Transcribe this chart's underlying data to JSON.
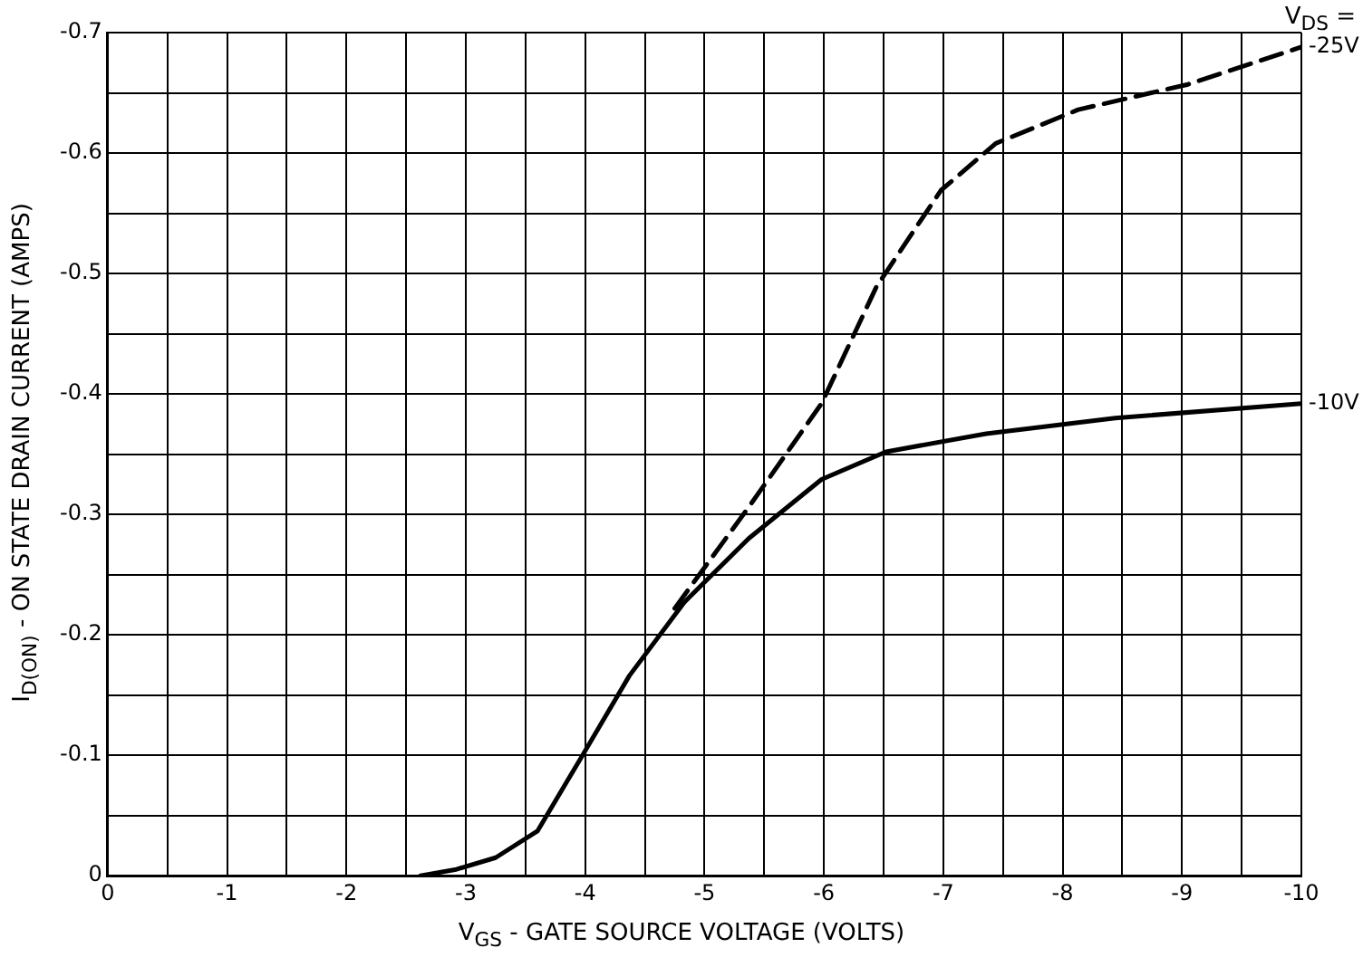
{
  "chart_data": {
    "type": "line",
    "xlabel": "V$_{GS}$ - GATE SOURCE VOLTAGE (VOLTS)",
    "ylabel": "I$_{D(ON)}$ - ON STATE DRAIN CURRENT (AMPS)",
    "legend_title": "V$_{DS}$ =",
    "xlim": [
      0,
      -10
    ],
    "ylim": [
      0,
      -0.7
    ],
    "xticks": [
      0,
      {
        "value": -0.5,
        "label": null
      },
      -1,
      {
        "value": -1.5,
        "label": null
      },
      -2,
      {
        "value": -2.5,
        "label": null
      },
      -3,
      {
        "value": -3.5,
        "label": null
      },
      -4,
      {
        "value": -4.5,
        "label": null
      },
      -5,
      {
        "value": -5.5,
        "label": null
      },
      -6,
      {
        "value": -6.5,
        "label": null
      },
      -7,
      {
        "value": -7.5,
        "label": null
      },
      -8,
      {
        "value": -8.5,
        "label": null
      },
      -9,
      {
        "value": -9.5,
        "label": null
      },
      -10
    ],
    "yticks": [
      0,
      {
        "value": -0.05,
        "label": null
      },
      -0.1,
      {
        "value": -0.15,
        "label": null
      },
      -0.2,
      {
        "value": -0.25,
        "label": null
      },
      -0.3,
      {
        "value": -0.35,
        "label": null
      },
      -0.4,
      {
        "value": -0.45,
        "label": null
      },
      -0.5,
      {
        "value": -0.55,
        "label": null
      },
      -0.6,
      {
        "value": -0.65,
        "label": null
      },
      -0.7
    ],
    "grid": true,
    "series": [
      {
        "name": "-25V",
        "color": "#000000",
        "line_style": "dashed",
        "x": [
          -4.75,
          -5.37,
          -5.98,
          -6.44,
          -6.98,
          -7.44,
          -8.13,
          -9.05,
          -10
        ],
        "values": [
          -0.222,
          -0.306,
          -0.392,
          -0.489,
          -0.569,
          -0.608,
          -0.636,
          -0.657,
          -0.688
        ]
      },
      {
        "name": "-10V",
        "color": "#000000",
        "line_style": "solid",
        "x": [
          -2.62,
          -2.91,
          -3.25,
          -3.6,
          -3.99,
          -4.37,
          -4.83,
          -5.37,
          -5.98,
          -6.52,
          -7.36,
          -8.44,
          -10
        ],
        "values": [
          0,
          -0.005,
          -0.015,
          -0.037,
          -0.102,
          -0.166,
          -0.227,
          -0.28,
          -0.329,
          -0.352,
          -0.367,
          -0.38,
          -0.392
        ]
      }
    ]
  }
}
